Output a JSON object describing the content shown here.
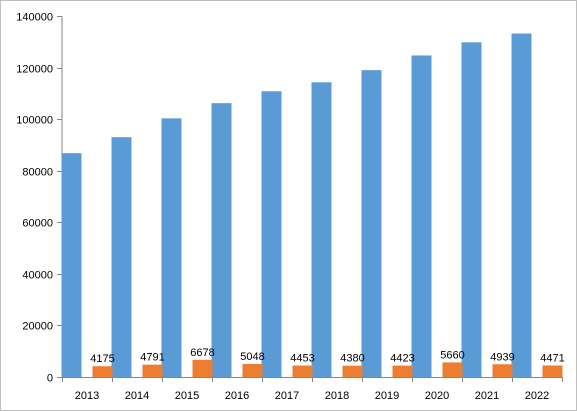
{
  "chart_data": {
    "type": "bar",
    "categories": [
      "2013",
      "2014",
      "2015",
      "2016",
      "2017",
      "2018",
      "2019",
      "2020",
      "2021",
      "2022"
    ],
    "series": [
      {
        "values": [
          86800,
          93000,
          100300,
          106200,
          110800,
          114300,
          119000,
          124700,
          129800,
          133200
        ],
        "color": "#5b9bd5",
        "data_labels": false
      },
      {
        "values": [
          4175,
          4791,
          6678,
          5048,
          4453,
          4380,
          4423,
          5660,
          4939,
          4471
        ],
        "color": "#ed7d31",
        "data_labels": true
      }
    ],
    "yticks": [
      "0",
      "20000",
      "40000",
      "60000",
      "80000",
      "100000",
      "120000",
      "140000"
    ],
    "ylim": [
      0,
      140000
    ],
    "title": "",
    "xlabel": "",
    "ylabel": "",
    "grid": false,
    "legend": "none"
  }
}
